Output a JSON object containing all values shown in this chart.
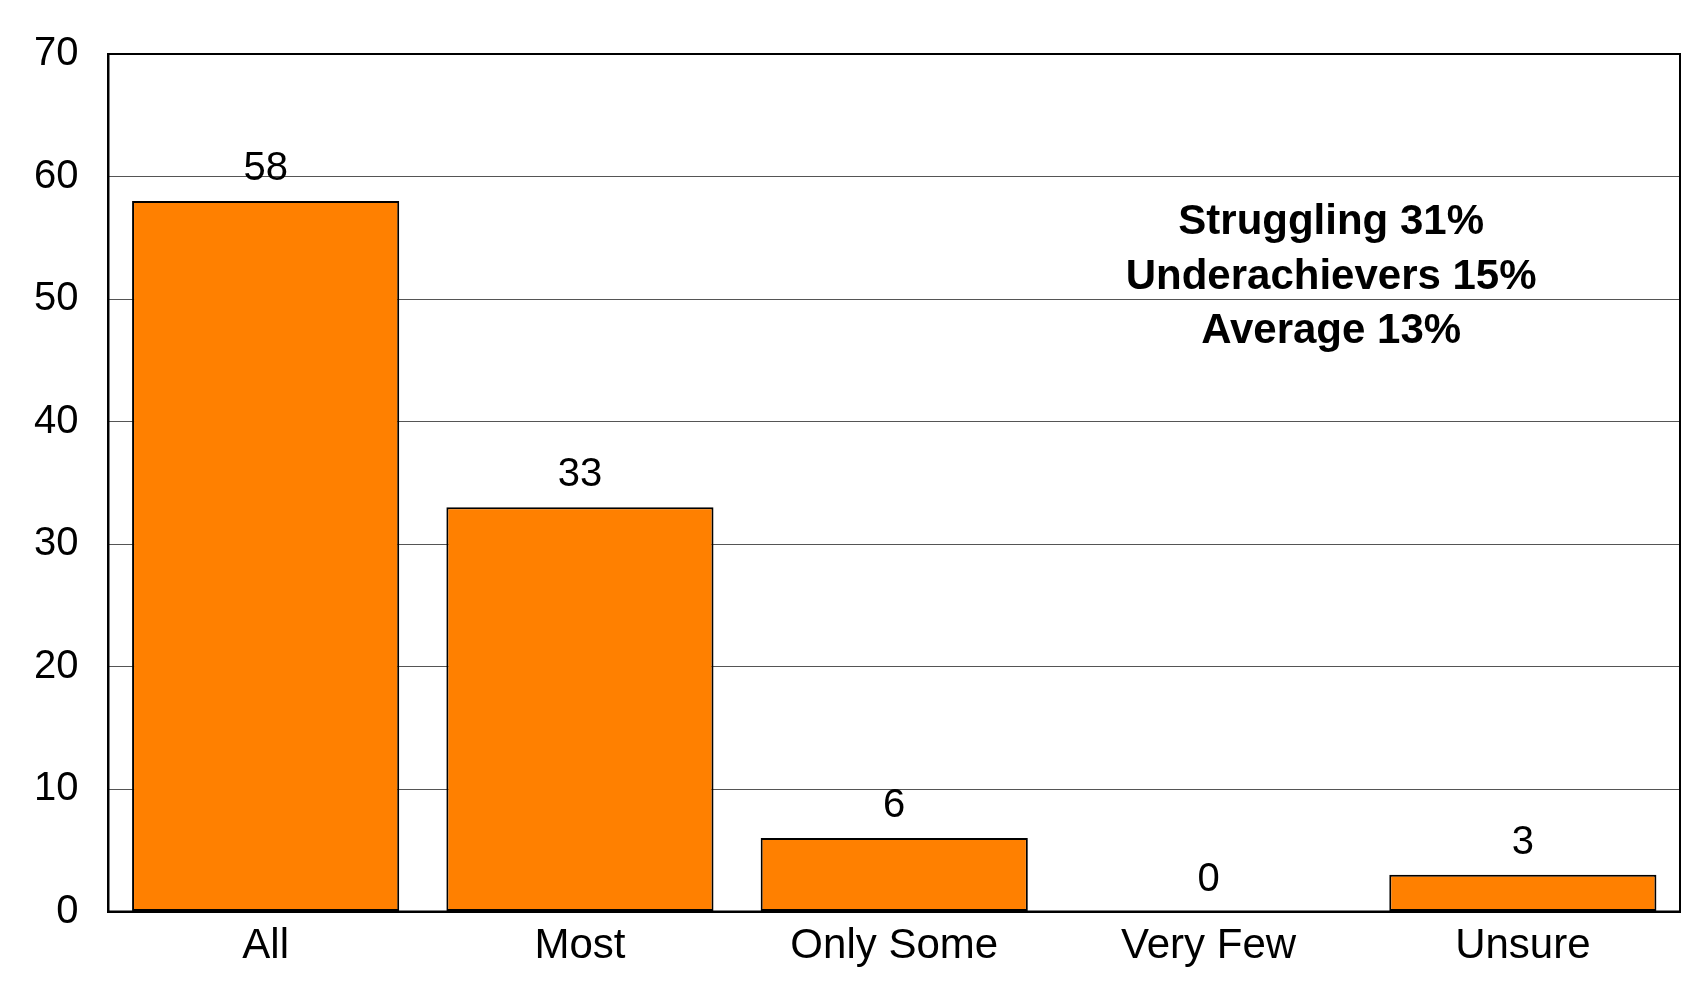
{
  "chart_data": {
    "type": "bar",
    "categories": [
      "All",
      "Most",
      "Only Some",
      "Very Few",
      "Unsure"
    ],
    "values": [
      58,
      33,
      6,
      0,
      3
    ],
    "color": "#ff8000",
    "ylim": [
      0,
      70
    ],
    "yticks": [
      0,
      10,
      20,
      30,
      40,
      50,
      60,
      70
    ],
    "grid": "y",
    "data_labels": true,
    "annotations": [
      "Struggling 31%",
      "Underachievers 15%",
      "Average 13%"
    ]
  }
}
